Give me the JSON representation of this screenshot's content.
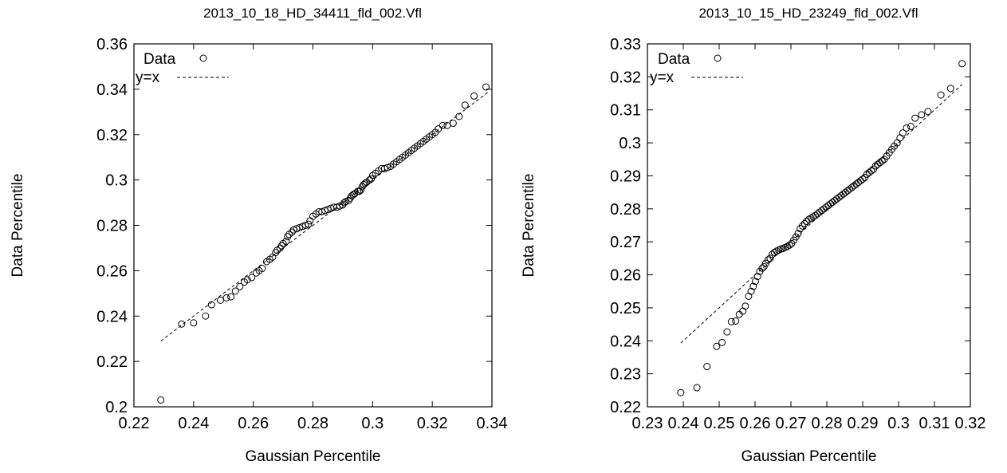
{
  "chart_data": [
    {
      "type": "scatter",
      "title": "2013_10_18_HD_34411_fld_002.Vfl",
      "xlabel": "Gaussian Percentile",
      "ylabel": "Data Percentile",
      "xlim": [
        0.22,
        0.34
      ],
      "ylim": [
        0.2,
        0.36
      ],
      "xticks": [
        "0.22",
        "0.24",
        "0.26",
        "0.28",
        "0.3",
        "0.32",
        "0.34"
      ],
      "yticks": [
        "0.2",
        "0.22",
        "0.24",
        "0.26",
        "0.28",
        "0.3",
        "0.32",
        "0.34",
        "0.36"
      ],
      "legend_position": "top-left",
      "grid": false,
      "series": [
        {
          "name": "Data",
          "style": "open-circle",
          "x": [
            0.229,
            0.236,
            0.24,
            0.244,
            0.246,
            0.249,
            0.251,
            0.2525,
            0.254,
            0.2555,
            0.257,
            0.258,
            0.2595,
            0.261,
            0.262,
            0.263,
            0.2645,
            0.2655,
            0.2665,
            0.2675,
            0.268,
            0.269,
            0.2695,
            0.27,
            0.271,
            0.2715,
            0.272,
            0.273,
            0.2735,
            0.2745,
            0.2755,
            0.2765,
            0.2775,
            0.2785,
            0.279,
            0.28,
            0.281,
            0.282,
            0.283,
            0.284,
            0.285,
            0.286,
            0.287,
            0.288,
            0.289,
            0.29,
            0.2905,
            0.291,
            0.292,
            0.2925,
            0.293,
            0.2935,
            0.294,
            0.295,
            0.2955,
            0.296,
            0.2965,
            0.297,
            0.2975,
            0.298,
            0.299,
            0.2995,
            0.3,
            0.301,
            0.302,
            0.303,
            0.304,
            0.305,
            0.306,
            0.307,
            0.308,
            0.309,
            0.31,
            0.311,
            0.312,
            0.313,
            0.314,
            0.315,
            0.316,
            0.317,
            0.318,
            0.319,
            0.32,
            0.321,
            0.322,
            0.3235,
            0.325,
            0.327,
            0.329,
            0.331,
            0.334,
            0.338
          ],
          "y": [
            0.203,
            0.2365,
            0.237,
            0.24,
            0.245,
            0.247,
            0.248,
            0.2485,
            0.251,
            0.253,
            0.255,
            0.256,
            0.257,
            0.259,
            0.26,
            0.261,
            0.264,
            0.265,
            0.266,
            0.268,
            0.269,
            0.27,
            0.271,
            0.272,
            0.273,
            0.275,
            0.276,
            0.277,
            0.278,
            0.2785,
            0.279,
            0.2795,
            0.28,
            0.2805,
            0.282,
            0.284,
            0.285,
            0.286,
            0.286,
            0.2865,
            0.287,
            0.2875,
            0.288,
            0.288,
            0.2885,
            0.289,
            0.29,
            0.2905,
            0.291,
            0.292,
            0.293,
            0.2935,
            0.294,
            0.295,
            0.295,
            0.2955,
            0.297,
            0.298,
            0.2985,
            0.299,
            0.3,
            0.3005,
            0.302,
            0.303,
            0.304,
            0.305,
            0.305,
            0.3055,
            0.306,
            0.307,
            0.308,
            0.309,
            0.31,
            0.311,
            0.312,
            0.313,
            0.314,
            0.315,
            0.316,
            0.317,
            0.318,
            0.319,
            0.32,
            0.321,
            0.3225,
            0.324,
            0.324,
            0.325,
            0.328,
            0.333,
            0.337,
            0.341
          ]
        },
        {
          "name": "y=x",
          "style": "dashed-line",
          "x": [
            0.229,
            0.339
          ],
          "y": [
            0.229,
            0.339
          ]
        }
      ]
    },
    {
      "type": "scatter",
      "title": "2013_10_15_HD_23249_fld_002.Vfl",
      "xlabel": "Gaussian Percentile",
      "ylabel": "Data Percentile",
      "xlim": [
        0.23,
        0.32
      ],
      "ylim": [
        0.22,
        0.33
      ],
      "xticks": [
        "0.23",
        "0.24",
        "0.25",
        "0.26",
        "0.27",
        "0.28",
        "0.29",
        "0.3",
        "0.31",
        "0.32"
      ],
      "yticks": [
        "0.22",
        "0.23",
        "0.24",
        "0.25",
        "0.26",
        "0.27",
        "0.28",
        "0.29",
        "0.3",
        "0.31",
        "0.32",
        "0.33"
      ],
      "legend_position": "top-left",
      "grid": false,
      "series": [
        {
          "name": "Data",
          "style": "open-circle",
          "x": [
            0.2393,
            0.2438,
            0.2466,
            0.2493,
            0.2508,
            0.2522,
            0.2534,
            0.2546,
            0.2556,
            0.2566,
            0.2573,
            0.2582,
            0.2589,
            0.2595,
            0.2601,
            0.2607,
            0.2613,
            0.262,
            0.2625,
            0.263,
            0.2636,
            0.2642,
            0.2648,
            0.2654,
            0.266,
            0.2666,
            0.2672,
            0.2678,
            0.2684,
            0.269,
            0.2696,
            0.2702,
            0.2708,
            0.2714,
            0.272,
            0.2726,
            0.2732,
            0.2738,
            0.2744,
            0.275,
            0.2756,
            0.2762,
            0.2768,
            0.2774,
            0.278,
            0.2786,
            0.2792,
            0.2798,
            0.2804,
            0.281,
            0.2816,
            0.2822,
            0.2828,
            0.2834,
            0.284,
            0.2846,
            0.2852,
            0.2858,
            0.2864,
            0.287,
            0.2876,
            0.2882,
            0.2888,
            0.2894,
            0.29,
            0.2906,
            0.2912,
            0.2918,
            0.2924,
            0.293,
            0.2936,
            0.2942,
            0.2948,
            0.2954,
            0.296,
            0.2967,
            0.2974,
            0.2981,
            0.2988,
            0.2996,
            0.3004,
            0.3012,
            0.3022,
            0.3034,
            0.3046,
            0.3064,
            0.3082,
            0.3118,
            0.3145,
            0.3177
          ],
          "y": [
            0.2243,
            0.2258,
            0.2322,
            0.2383,
            0.2395,
            0.2427,
            0.2458,
            0.246,
            0.248,
            0.249,
            0.2505,
            0.2535,
            0.255,
            0.2565,
            0.258,
            0.2595,
            0.261,
            0.262,
            0.2625,
            0.2635,
            0.2645,
            0.265,
            0.2662,
            0.2668,
            0.2672,
            0.2675,
            0.2678,
            0.268,
            0.2683,
            0.2686,
            0.269,
            0.2695,
            0.2705,
            0.2715,
            0.2725,
            0.274,
            0.2748,
            0.2755,
            0.2762,
            0.2768,
            0.2772,
            0.2776,
            0.278,
            0.2785,
            0.279,
            0.2795,
            0.28,
            0.2805,
            0.281,
            0.2815,
            0.282,
            0.2825,
            0.283,
            0.2835,
            0.284,
            0.2845,
            0.285,
            0.2855,
            0.286,
            0.2865,
            0.287,
            0.2875,
            0.288,
            0.2885,
            0.289,
            0.2895,
            0.2905,
            0.291,
            0.2915,
            0.292,
            0.293,
            0.2935,
            0.294,
            0.2945,
            0.295,
            0.296,
            0.297,
            0.298,
            0.299,
            0.3,
            0.3015,
            0.303,
            0.3045,
            0.305,
            0.3075,
            0.3085,
            0.3095,
            0.3145,
            0.3165,
            0.324
          ]
        },
        {
          "name": "y=x",
          "style": "dashed-line",
          "x": [
            0.2393,
            0.3177
          ],
          "y": [
            0.2393,
            0.3177
          ]
        }
      ]
    }
  ]
}
